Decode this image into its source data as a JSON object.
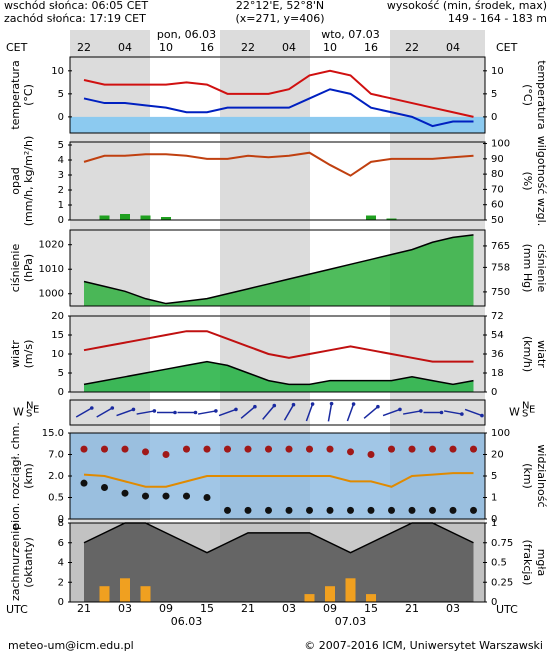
{
  "header": {
    "sunrise": "wschód słońca: 06:05 CET",
    "sunset": "zachód słońca: 17:19 CET",
    "coords": "22°12'E, 52°8'N",
    "grid": "(x=271, y=406)",
    "elevation_title": "wysokość (min, środek, max)",
    "elevation": "149 - 164 - 183 m"
  },
  "time": {
    "cet_label": "CET",
    "utc_label": "UTC",
    "cet_hours": [
      "22",
      null,
      "04",
      null,
      "10",
      null,
      "16",
      null,
      "22",
      null,
      "04",
      null,
      "10",
      null,
      "16",
      null,
      "22",
      null,
      "04",
      null
    ],
    "utc_hours": [
      "21",
      null,
      "03",
      null,
      "09",
      null,
      "15",
      null,
      "21",
      null,
      "03",
      null,
      "09",
      null,
      "15",
      null,
      "21",
      null,
      "03",
      null
    ],
    "day_top": [
      "pon, 06.03",
      "wto, 07.03"
    ],
    "day_bottom": [
      "06.03",
      "07.03"
    ]
  },
  "footer": {
    "email": "meteo-um@icm.edu.pl",
    "copyright": "© 2007-2016 ICM, Uniwersytet Warszawski"
  },
  "chart_data": [
    {
      "type": "line",
      "ylabel": [
        "temperatura",
        "(°C)"
      ],
      "y2label": [
        "(°C)",
        "temperatura"
      ],
      "ylim": [
        -3.5,
        13
      ],
      "yticks": [
        0,
        5,
        10
      ],
      "y2lim": [
        -3.5,
        13
      ],
      "y2ticks": [
        0,
        5,
        10
      ],
      "zero_band_color": "#8ccaf0",
      "series": [
        {
          "color": "#d01010",
          "style": "line",
          "values": [
            8,
            7,
            7,
            7,
            7,
            7.5,
            7,
            5,
            5,
            5,
            6,
            9,
            10,
            9,
            5,
            4,
            3,
            2,
            1,
            0
          ]
        },
        {
          "color": "#0020c0",
          "style": "line",
          "values": [
            4,
            3,
            3,
            2.5,
            2,
            1,
            1,
            2,
            2,
            2,
            2,
            4,
            6,
            5,
            2,
            1,
            0,
            -2,
            -1,
            -1
          ]
        }
      ]
    },
    {
      "type": "line",
      "ylabel": [
        "opad",
        "(mm/h, kg/m²/h)"
      ],
      "y2label": [
        "(%)",
        "wilgotność wzgl."
      ],
      "ylim": [
        0,
        5.2
      ],
      "yticks": [
        0,
        1,
        2,
        3,
        4,
        5
      ],
      "y2lim": [
        50,
        101
      ],
      "y2ticks": [
        50,
        60,
        70,
        80,
        90,
        100
      ],
      "series": [
        {
          "color": "#20a020",
          "style": "bar",
          "values": [
            0,
            0.3,
            0.4,
            0.3,
            0.2,
            0,
            0,
            0,
            0,
            0,
            0,
            0,
            0,
            0,
            0.3,
            0.1,
            0,
            0,
            0,
            0
          ]
        },
        {
          "color": "#c04010",
          "style": "line",
          "axis": "y2",
          "values": [
            88,
            92,
            92,
            93,
            93,
            92,
            90,
            90,
            92,
            91,
            92,
            94,
            86,
            79,
            88,
            90,
            90,
            90,
            91,
            92
          ]
        }
      ]
    },
    {
      "type": "line",
      "ylabel": [
        "ciśnienie",
        "(hPa)"
      ],
      "y2label": [
        "(mm Hg)",
        "ciśnienie"
      ],
      "ylim": [
        995,
        1026
      ],
      "yticks": [
        1000,
        1010,
        1020
      ],
      "y2lim": [
        745.4,
        770.2
      ],
      "y2ticks": [
        750,
        758,
        765
      ],
      "series": [
        {
          "color": "#30b040",
          "style": "area",
          "values": [
            1005,
            1003,
            1001,
            998,
            996,
            997,
            998,
            1000,
            1002,
            1004,
            1006,
            1008,
            1010,
            1012,
            1014,
            1016,
            1018,
            1021,
            1023,
            1024
          ]
        }
      ]
    },
    {
      "type": "line",
      "ylabel": [
        "wiatr",
        "(m/s)"
      ],
      "y2label": [
        "(km/h)",
        "wiatr"
      ],
      "ylim": [
        0,
        20
      ],
      "yticks": [
        0,
        5,
        10,
        15,
        20
      ],
      "y2lim": [
        0,
        72
      ],
      "y2ticks": [
        0,
        18,
        36,
        54,
        72
      ],
      "series": [
        {
          "color": "#20b040",
          "style": "area",
          "values": [
            2,
            3,
            4,
            5,
            6,
            7,
            8,
            7,
            5,
            3,
            2,
            2,
            3,
            3,
            3,
            3,
            4,
            3,
            2,
            3
          ]
        },
        {
          "color": "#c01010",
          "style": "line",
          "values": [
            11,
            12,
            13,
            14,
            15,
            16,
            16,
            14,
            12,
            10,
            9,
            10,
            11,
            12,
            11,
            10,
            9,
            8,
            8,
            8
          ]
        }
      ]
    },
    {
      "type": "arrows",
      "compass": {
        "n": "N",
        "e": "E",
        "s": "S",
        "w": "W"
      },
      "color": "#1a2aa0",
      "values": [
        240,
        240,
        250,
        260,
        270,
        270,
        260,
        250,
        230,
        220,
        210,
        200,
        190,
        200,
        230,
        250,
        260,
        270,
        280,
        290
      ]
    },
    {
      "type": "line",
      "ylabel": [
        "pion. rozciągł. chm.",
        "(km)"
      ],
      "y2label": [
        "(km)",
        "widzialność"
      ],
      "yscale": "ticks",
      "background": "#8ab8e0",
      "ylim": [
        0,
        15
      ],
      "yticks": [
        0,
        {
          "value": 0.5,
          "label": "0.5"
        },
        {
          "value": 2,
          "label": "2.0"
        },
        {
          "value": 7,
          "label": "7.0"
        },
        {
          "value": 15,
          "label": "15.0"
        }
      ],
      "y2lim": [
        0,
        100
      ],
      "y2ticks": [
        0,
        1,
        5,
        20,
        100
      ],
      "series": [
        {
          "color": "#a01818",
          "style": "dots",
          "axis": "y2",
          "values": [
            40,
            40,
            40,
            30,
            20,
            40,
            40,
            40,
            40,
            40,
            40,
            40,
            40,
            30,
            20,
            40,
            40,
            40,
            40,
            40
          ]
        },
        {
          "color": "#e08a00",
          "style": "line",
          "axis": "y2",
          "values": [
            6,
            5,
            4,
            3,
            3,
            4,
            5,
            5,
            5,
            5,
            5,
            5,
            5,
            4,
            4,
            3,
            5,
            6,
            7,
            7
          ]
        },
        {
          "color": "#111111",
          "style": "dots",
          "values": [
            1.5,
            1.2,
            0.8,
            0.6,
            0.6,
            0.6,
            0.5,
            0.2,
            0.2,
            0.2,
            0.2,
            0.2,
            0.2,
            0.2,
            0.2,
            0.2,
            0.2,
            0.2,
            0.2,
            0.2
          ]
        }
      ]
    },
    {
      "type": "line",
      "ylabel": [
        "zachmurzenie",
        "(oktanty)"
      ],
      "y2label": [
        "(frakcja)",
        "mgła"
      ],
      "background": "#bbbbbb",
      "ylim": [
        0,
        8
      ],
      "yticks": [
        0,
        2,
        4,
        6,
        8
      ],
      "y2lim": [
        0,
        1
      ],
      "y2ticks": [
        0,
        0.25,
        0.5,
        0.75,
        1
      ],
      "series": [
        {
          "color": "#555555",
          "style": "area",
          "values": [
            6,
            7,
            8,
            8,
            7,
            6,
            5,
            6,
            7,
            7,
            7,
            7,
            6,
            5,
            6,
            7,
            8,
            8,
            7,
            6
          ]
        },
        {
          "color": "#f0a020",
          "style": "bar",
          "axis": "y2",
          "values": [
            0,
            0.2,
            0.3,
            0.2,
            0,
            0,
            0,
            0,
            0,
            0,
            0,
            0.1,
            0.2,
            0.3,
            0.1,
            0,
            0,
            0,
            0,
            0
          ]
        }
      ]
    }
  ]
}
